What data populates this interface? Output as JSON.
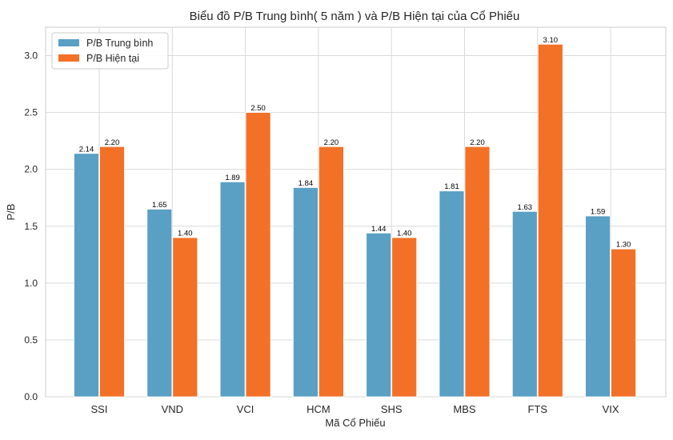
{
  "chart_data": {
    "type": "bar",
    "title": "Biểu đồ P/B Trung bình( 5 năm ) và P/B Hiện tại của Cổ Phiếu",
    "xlabel": "Mã Cổ Phiếu",
    "ylabel": "P/B",
    "categories": [
      "SSI",
      "VND",
      "VCI",
      "HCM",
      "SHS",
      "MBS",
      "FTS",
      "VIX"
    ],
    "series": [
      {
        "name": "P/B Trung bình",
        "color": "#5a9fc4",
        "values": [
          2.14,
          1.65,
          1.89,
          1.84,
          1.44,
          1.81,
          1.63,
          1.59
        ],
        "labels": [
          "2.14",
          "1.65",
          "1.89",
          "1.84",
          "1.44",
          "1.81",
          "1.63",
          "1.59"
        ]
      },
      {
        "name": "P/B Hiện tại",
        "color": "#f27127",
        "values": [
          2.2,
          1.4,
          2.5,
          2.2,
          1.4,
          2.2,
          3.1,
          1.3
        ],
        "labels": [
          "2.20",
          "1.40",
          "2.50",
          "2.20",
          "1.40",
          "2.20",
          "3.10",
          "1.30"
        ]
      }
    ],
    "ylim": [
      0,
      3.25
    ],
    "yticks": [
      0,
      0.5,
      1.0,
      1.5,
      2.0,
      2.5,
      3.0
    ],
    "ytick_labels": [
      "0.0",
      "0.5",
      "1.0",
      "1.5",
      "2.0",
      "2.5",
      "3.0"
    ],
    "grid": true,
    "legend_position": "top-left"
  }
}
